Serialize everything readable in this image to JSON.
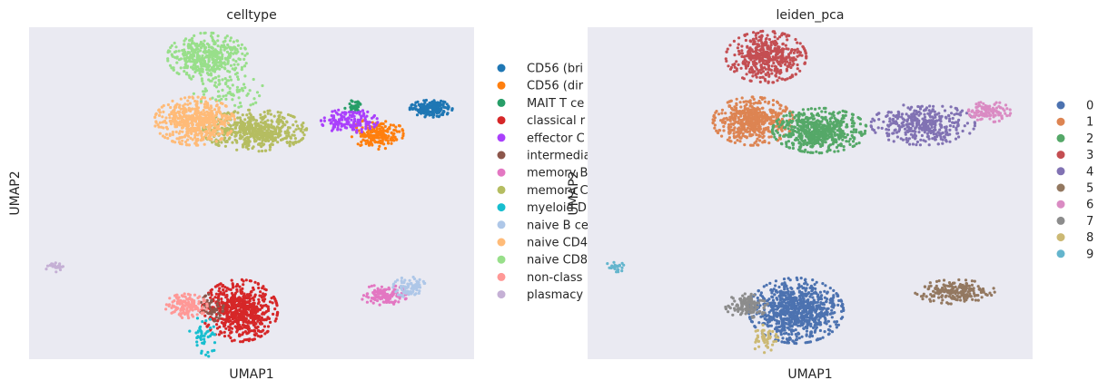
{
  "chart_data": [
    {
      "type": "scatter",
      "title": "celltype",
      "xlabel": "UMAP1",
      "ylabel": "UMAP2",
      "grid": false,
      "legend": "right",
      "series": [
        {
          "name": "CD56 (bri",
          "color": "#1f77b4",
          "clusters": [
            {
              "x": 13.2,
              "y": 7.8,
              "sx": 0.45,
              "sy": 0.25,
              "n": 300
            }
          ]
        },
        {
          "name": "CD56 (dir",
          "color": "#ff7f0e",
          "clusters": [
            {
              "x": 10.7,
              "y": 6.2,
              "sx": 0.55,
              "sy": 0.45,
              "n": 320
            }
          ]
        },
        {
          "name": "MAIT T ce",
          "color": "#279e68",
          "clusters": [
            {
              "x": 9.6,
              "y": 8.0,
              "sx": 0.2,
              "sy": 0.2,
              "n": 60
            }
          ]
        },
        {
          "name": "classical r",
          "color": "#d62728",
          "clusters": [
            {
              "x": 4.3,
              "y": -5.1,
              "sx": 0.8,
              "sy": 0.9,
              "n": 1100
            }
          ]
        },
        {
          "name": "effector C",
          "color": "#aa40fc",
          "clusters": [
            {
              "x": 9.4,
              "y": 7.0,
              "sx": 0.6,
              "sy": 0.35,
              "n": 260
            }
          ]
        },
        {
          "name": "intermedia",
          "color": "#8c564b",
          "clusters": [
            {
              "x": 3.0,
              "y": -4.9,
              "sx": 0.25,
              "sy": 0.4,
              "n": 80
            }
          ]
        },
        {
          "name": "memory B",
          "color": "#e377c2",
          "clusters": [
            {
              "x": 11.0,
              "y": -4.1,
              "sx": 0.5,
              "sy": 0.3,
              "n": 220
            }
          ]
        },
        {
          "name": "memory C",
          "color": "#b5bd61",
          "clusters": [
            {
              "x": 5.0,
              "y": 6.4,
              "sx": 1.1,
              "sy": 0.6,
              "n": 900
            }
          ]
        },
        {
          "name": "myeloid D",
          "color": "#17becf",
          "clusters": [
            {
              "x": 2.6,
              "y": -6.8,
              "sx": 0.3,
              "sy": 0.6,
              "n": 80
            }
          ]
        },
        {
          "name": "naive B ce",
          "color": "#aec7e8",
          "clusters": [
            {
              "x": 12.2,
              "y": -3.6,
              "sx": 0.35,
              "sy": 0.3,
              "n": 130
            }
          ]
        },
        {
          "name": "naive CD4",
          "color": "#ffbb78",
          "clusters": [
            {
              "x": 2.2,
              "y": 7.0,
              "sx": 0.85,
              "sy": 0.7,
              "n": 850
            }
          ]
        },
        {
          "name": "naive CD8",
          "color": "#98df8a",
          "clusters": [
            {
              "x": 2.8,
              "y": 11.1,
              "sx": 0.85,
              "sy": 0.7,
              "n": 700
            },
            {
              "x": 3.8,
              "y": 8.9,
              "sx": 0.75,
              "sy": 0.5,
              "n": 120
            }
          ]
        },
        {
          "name": "non-class",
          "color": "#ff9896",
          "clusters": [
            {
              "x": 1.8,
              "y": -4.8,
              "sx": 0.45,
              "sy": 0.35,
              "n": 220
            }
          ]
        },
        {
          "name": "plasmacy",
          "color": "#c5b0d5",
          "clusters": [
            {
              "x": -4.2,
              "y": -2.3,
              "sx": 0.25,
              "sy": 0.15,
              "n": 40
            }
          ]
        }
      ]
    },
    {
      "type": "scatter",
      "title": "leiden_pca",
      "xlabel": "UMAP1",
      "ylabel": "UMAP2",
      "grid": false,
      "legend": "right",
      "series": [
        {
          "name": "0",
          "color": "#4c72b0",
          "clusters": [
            {
              "x": 4.2,
              "y": -5.1,
              "sx": 1.0,
              "sy": 0.95,
              "n": 1400
            }
          ]
        },
        {
          "name": "1",
          "color": "#dd8452",
          "clusters": [
            {
              "x": 2.2,
              "y": 7.0,
              "sx": 0.85,
              "sy": 0.7,
              "n": 900
            }
          ]
        },
        {
          "name": "2",
          "color": "#55a868",
          "clusters": [
            {
              "x": 5.3,
              "y": 6.4,
              "sx": 1.0,
              "sy": 0.65,
              "n": 950
            }
          ]
        },
        {
          "name": "3",
          "color": "#c44e52",
          "clusters": [
            {
              "x": 2.8,
              "y": 11.1,
              "sx": 0.85,
              "sy": 0.75,
              "n": 800
            }
          ]
        },
        {
          "name": "4",
          "color": "#8172b3",
          "clusters": [
            {
              "x": 10.1,
              "y": 6.8,
              "sx": 1.1,
              "sy": 0.6,
              "n": 600
            }
          ]
        },
        {
          "name": "5",
          "color": "#937860",
          "clusters": [
            {
              "x": 11.6,
              "y": -3.9,
              "sx": 0.85,
              "sy": 0.35,
              "n": 350
            }
          ]
        },
        {
          "name": "6",
          "color": "#da8bc3",
          "clusters": [
            {
              "x": 13.2,
              "y": 7.6,
              "sx": 0.45,
              "sy": 0.3,
              "n": 200
            }
          ]
        },
        {
          "name": "7",
          "color": "#8c8c8c",
          "clusters": [
            {
              "x": 1.9,
              "y": -4.8,
              "sx": 0.45,
              "sy": 0.35,
              "n": 220
            }
          ]
        },
        {
          "name": "8",
          "color": "#ccb974",
          "clusters": [
            {
              "x": 2.7,
              "y": -6.9,
              "sx": 0.3,
              "sy": 0.4,
              "n": 80
            }
          ]
        },
        {
          "name": "9",
          "color": "#64b5cd",
          "clusters": [
            {
              "x": -4.2,
              "y": -2.3,
              "sx": 0.25,
              "sy": 0.15,
              "n": 40
            }
          ]
        }
      ]
    }
  ]
}
